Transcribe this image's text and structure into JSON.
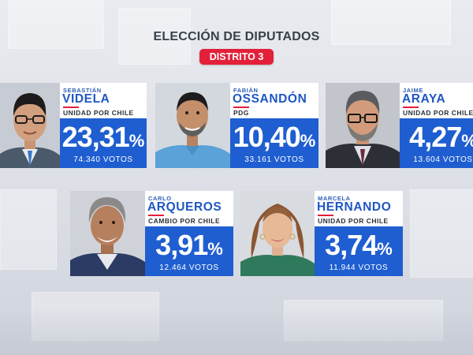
{
  "header": {
    "title": "ELECCIÓN DE DIPUTADOS",
    "district": "DISTRITO 3"
  },
  "colors": {
    "accent_red": "#e3203a",
    "result_blue": "#1f5ed1",
    "name_blue": "#1f56c3"
  },
  "candidates": [
    {
      "first_name": "SEBASTIÁN",
      "last_name": "VIDELA",
      "party": "UNIDAD POR CHILE",
      "percent": "23,31",
      "percent_sign": "%",
      "votes": "74.340 VOTOS",
      "percent_value": 23.31
    },
    {
      "first_name": "FABIÁN",
      "last_name": "OSSANDÓN",
      "party": "PDG",
      "percent": "10,40",
      "percent_sign": "%",
      "votes": "33.161 VOTOS",
      "percent_value": 10.4
    },
    {
      "first_name": "JAIME",
      "last_name": "ARAYA",
      "party": "UNIDAD POR CHILE",
      "percent": "4,27",
      "percent_sign": "%",
      "votes": "13.604 VOTOS",
      "percent_value": 4.27
    },
    {
      "first_name": "CARLO",
      "last_name": "ARQUEROS",
      "party": "CAMBIO POR CHILE",
      "percent": "3,91",
      "percent_sign": "%",
      "votes": "12.464 VOTOS",
      "percent_value": 3.91
    },
    {
      "first_name": "MARCELA",
      "last_name": "HERNANDO",
      "party": "UNIDAD POR CHILE",
      "percent": "3,74",
      "percent_sign": "%",
      "votes": "11.944 VOTOS",
      "percent_value": 3.74
    }
  ]
}
